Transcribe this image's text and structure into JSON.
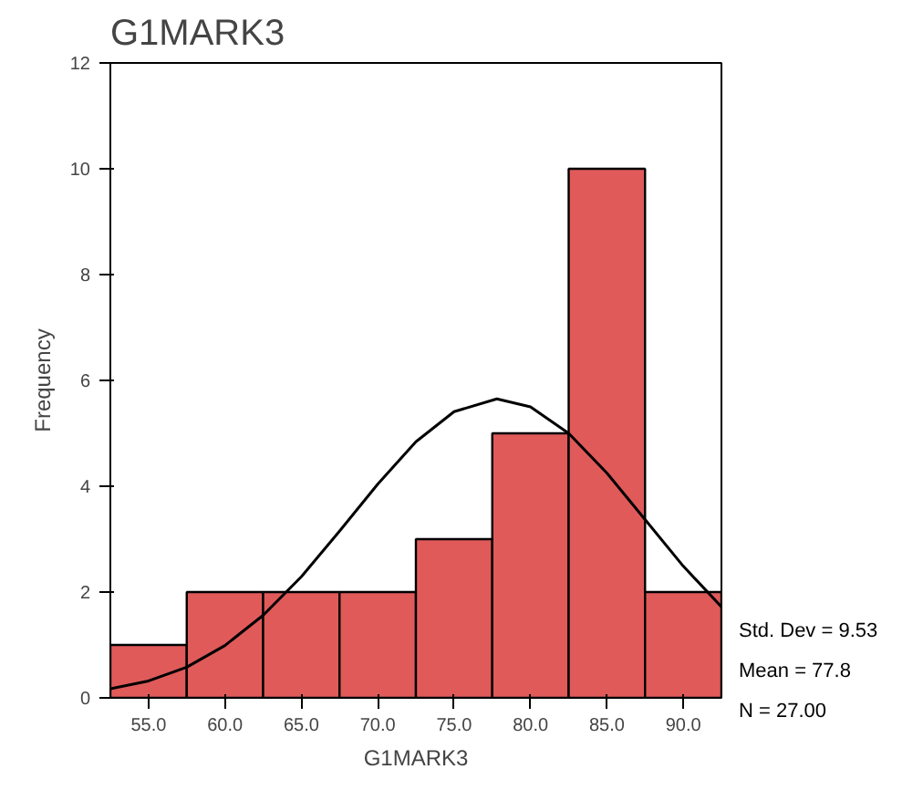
{
  "chart_data": {
    "type": "histogram",
    "title": "G1MARK3",
    "xlabel": "G1MARK3",
    "ylabel": "Frequency",
    "bins": [
      52.5,
      57.5,
      62.5,
      67.5,
      72.5,
      77.5,
      82.5,
      87.5,
      92.5
    ],
    "values": [
      1,
      2,
      2,
      2,
      3,
      5,
      10,
      2
    ],
    "color": "#e05a5a",
    "series": [
      {
        "type": "line",
        "color": "#000000",
        "x": [
          52.5,
          55,
          57.5,
          60,
          62.5,
          65,
          67.5,
          70,
          72.5,
          75,
          77.8,
          80,
          82.5,
          85,
          87.5,
          90,
          92.5
        ],
        "values": [
          0.17,
          0.32,
          0.58,
          0.99,
          1.56,
          2.29,
          3.15,
          4.04,
          4.84,
          5.41,
          5.65,
          5.5,
          5.0,
          4.25,
          3.37,
          2.49,
          1.72
        ]
      }
    ],
    "xlim": [
      52.5,
      92.5
    ],
    "ylim": [
      0,
      12
    ],
    "xticks": [
      {
        "value": 55,
        "label": "55.0"
      },
      {
        "value": 60,
        "label": "60.0"
      },
      {
        "value": 65,
        "label": "65.0"
      },
      {
        "value": 70,
        "label": "70.0"
      },
      {
        "value": 75,
        "label": "75.0"
      },
      {
        "value": 80,
        "label": "80.0"
      },
      {
        "value": 85,
        "label": "85.0"
      },
      {
        "value": 90,
        "label": "90.0"
      }
    ],
    "yticks": [
      0,
      2,
      4,
      6,
      8,
      10,
      12
    ],
    "annotations": [
      "Std. Dev = 9.53",
      "Mean = 77.8",
      "N = 27.00"
    ],
    "grid": false
  }
}
